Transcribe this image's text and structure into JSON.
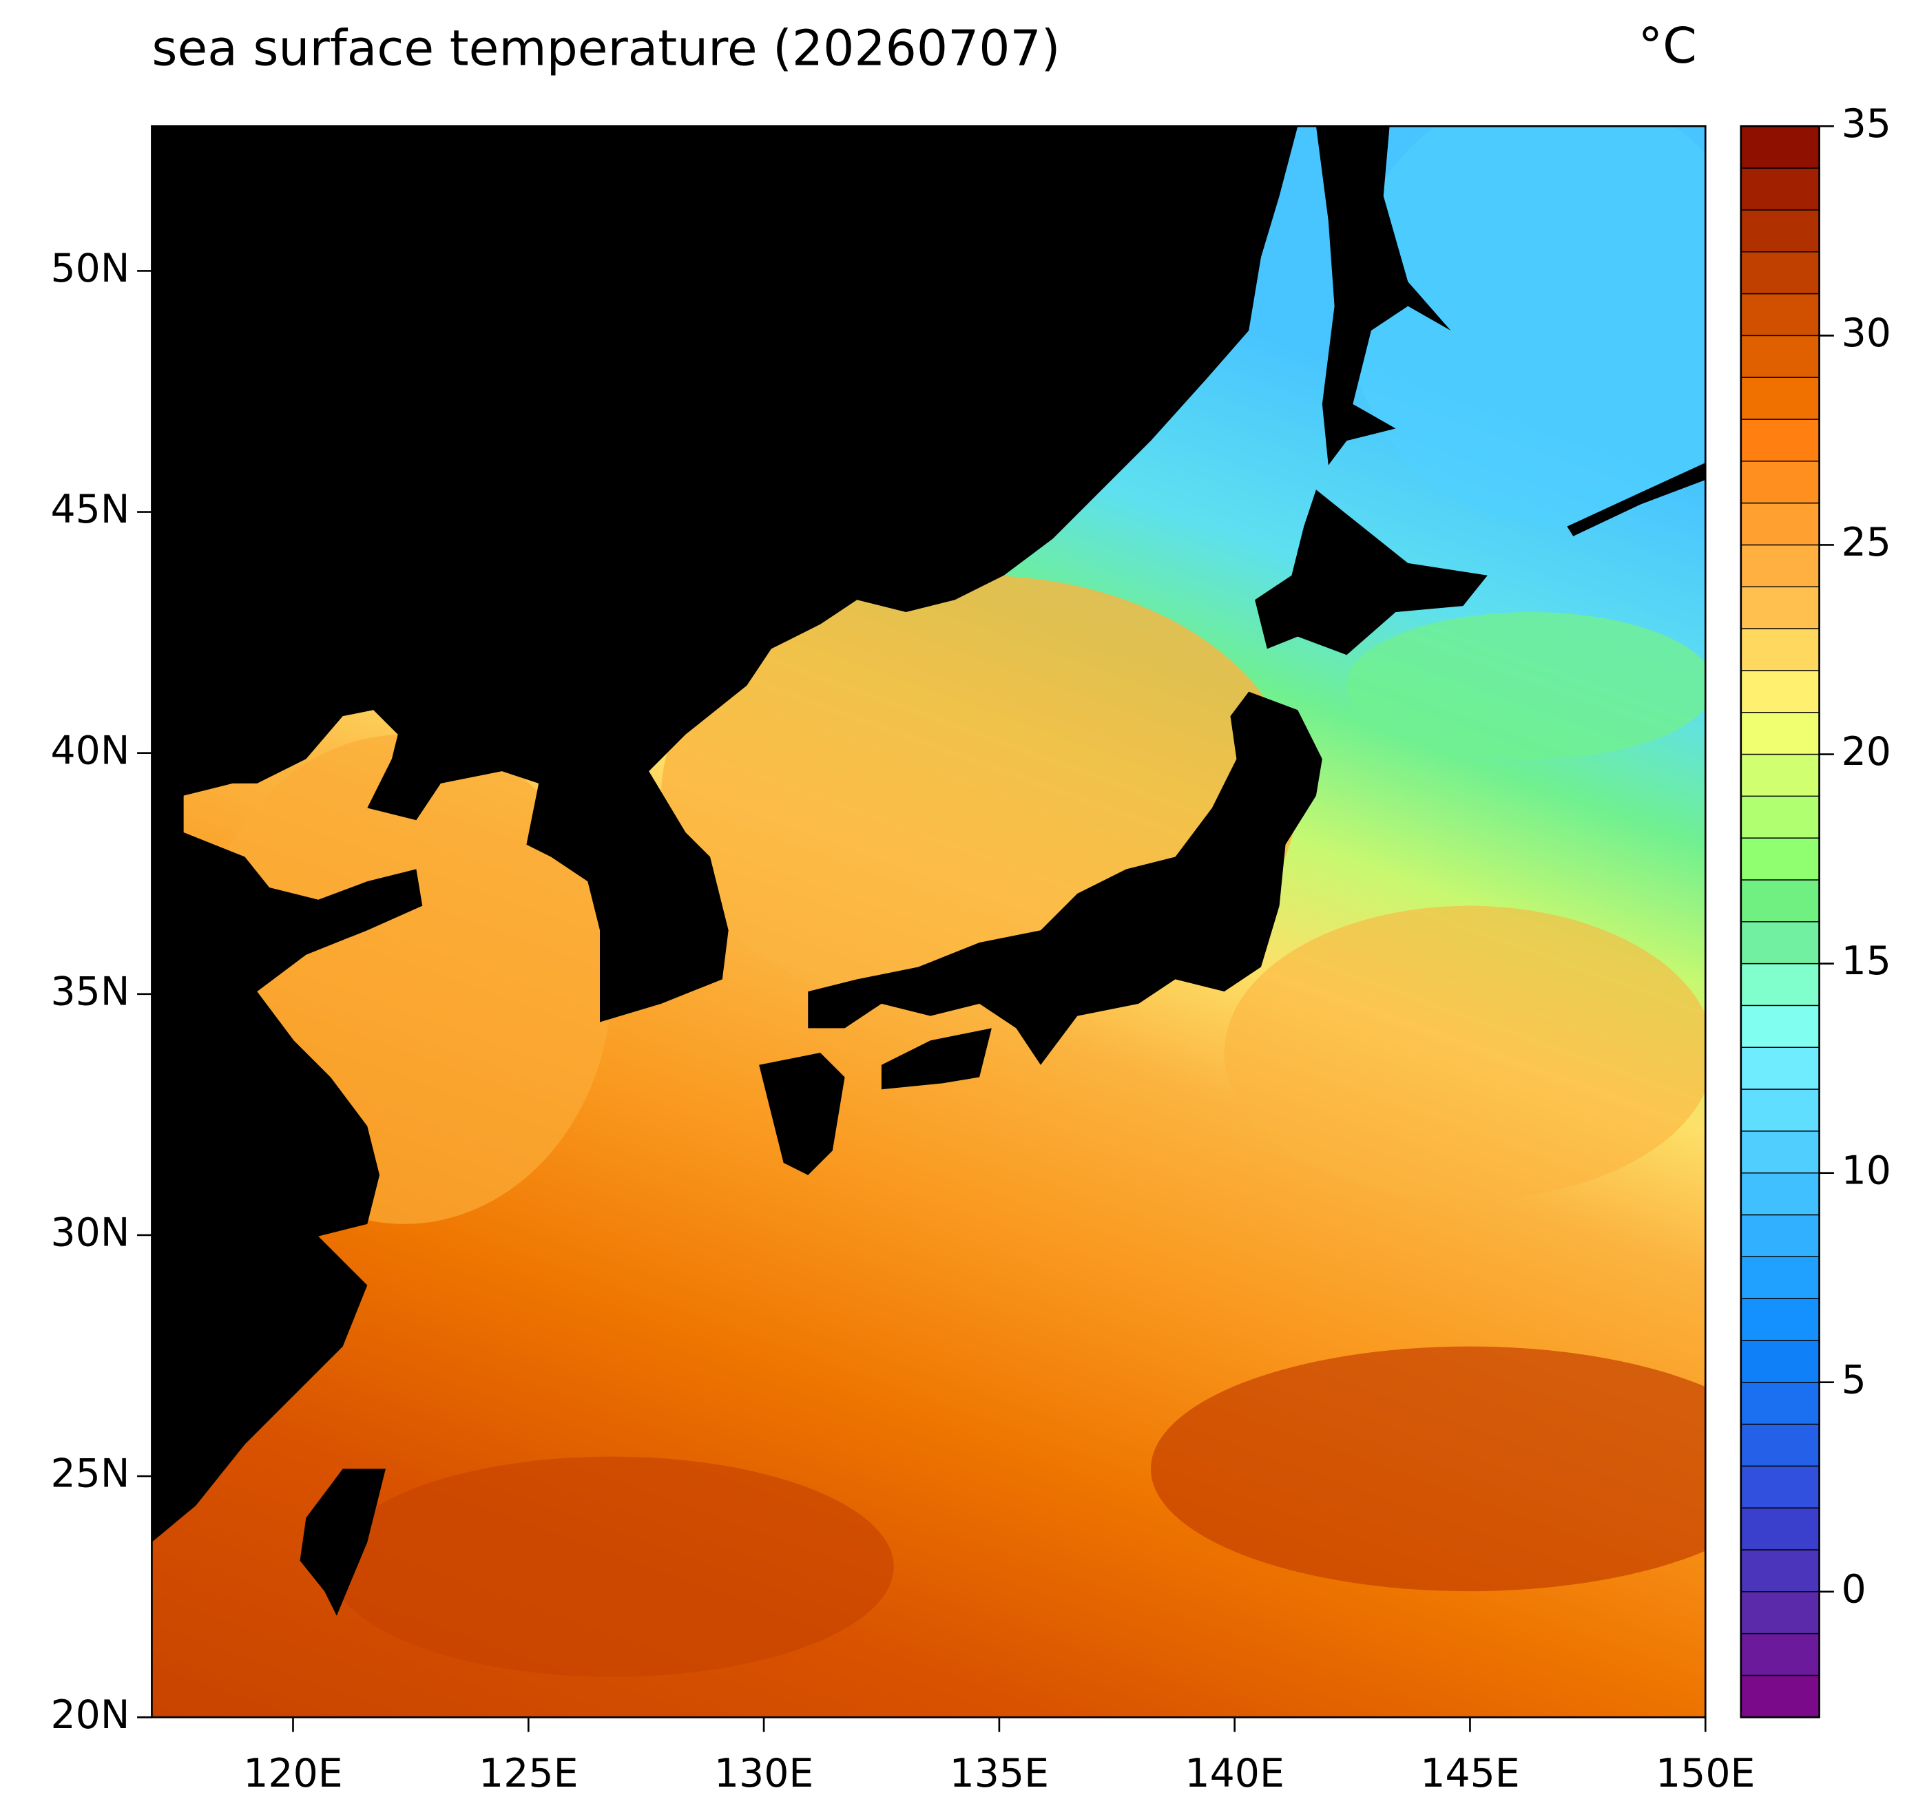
{
  "title": "sea surface temperature (20260707)",
  "unit": "°C",
  "map": {
    "xlim": [
      117,
      150
    ],
    "ylim": [
      20,
      53
    ],
    "xticks": [
      {
        "value": 120,
        "label": "120E"
      },
      {
        "value": 125,
        "label": "125E"
      },
      {
        "value": 130,
        "label": "130E"
      },
      {
        "value": 135,
        "label": "135E"
      },
      {
        "value": 140,
        "label": "140E"
      },
      {
        "value": 145,
        "label": "145E"
      },
      {
        "value": 150,
        "label": "150E"
      }
    ],
    "yticks": [
      {
        "value": 20,
        "label": "20N"
      },
      {
        "value": 25,
        "label": "25N"
      },
      {
        "value": 30,
        "label": "30N"
      },
      {
        "value": 35,
        "label": "35N"
      },
      {
        "value": 40,
        "label": "40N"
      },
      {
        "value": 45,
        "label": "45N"
      },
      {
        "value": 50,
        "label": "50N"
      }
    ]
  },
  "colorbar": {
    "lim": [
      -3,
      35
    ],
    "ticks": [
      0,
      5,
      10,
      15,
      20,
      25,
      30,
      35
    ],
    "colors": [
      "#7a0a8a",
      "#6a1a9a",
      "#5a2aaa",
      "#4a35bb",
      "#3a40cc",
      "#3050dd",
      "#2560e8",
      "#1a70f0",
      "#1080f8",
      "#1590ff",
      "#20a0ff",
      "#30b0ff",
      "#40c0ff",
      "#50cfff",
      "#60deff",
      "#70ecff",
      "#80fff0",
      "#80ffcc",
      "#70f0a0",
      "#70f080",
      "#90ff70",
      "#b0ff70",
      "#d0ff70",
      "#f0ff70",
      "#fff070",
      "#ffd860",
      "#ffc050",
      "#ffb040",
      "#ffa030",
      "#ff9020",
      "#ff8010",
      "#f07000",
      "#e06000",
      "#d05000",
      "#c04000",
      "#b03000",
      "#a02000",
      "#901000"
    ]
  }
}
